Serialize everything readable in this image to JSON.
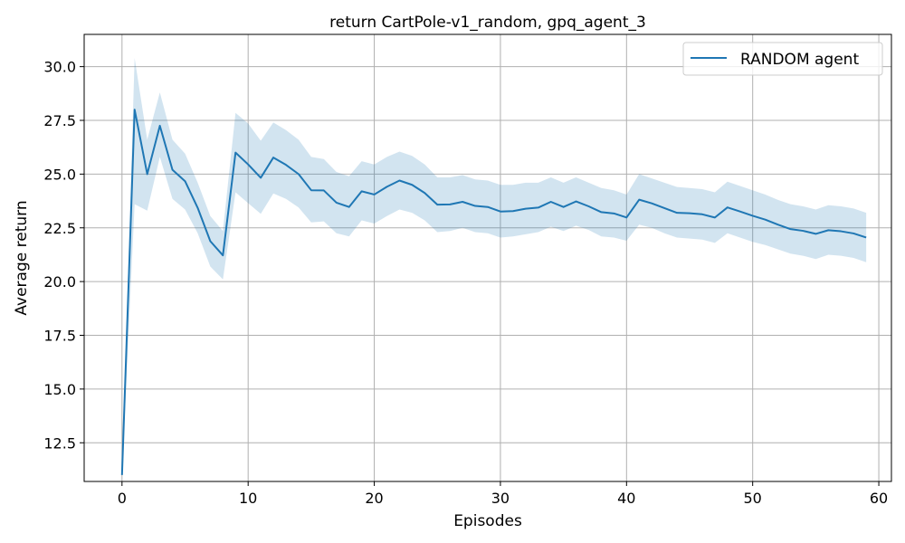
{
  "chart_data": {
    "type": "line",
    "title": "return CartPole-v1_random, gpq_agent_3",
    "xlabel": "Episodes",
    "ylabel": "Average return",
    "xlim": [
      -3,
      61
    ],
    "ylim": [
      10.7,
      31.5
    ],
    "x_ticks": [
      0,
      10,
      20,
      30,
      40,
      50,
      60
    ],
    "x_tick_labels": [
      "0",
      "10",
      "20",
      "30",
      "40",
      "50",
      "60"
    ],
    "y_ticks": [
      12.5,
      15.0,
      17.5,
      20.0,
      22.5,
      25.0,
      27.5,
      30.0
    ],
    "y_tick_labels": [
      "12.5",
      "15.0",
      "17.5",
      "20.0",
      "22.5",
      "25.0",
      "27.5",
      "30.0"
    ],
    "grid": true,
    "legend_position": "top-right",
    "series": [
      {
        "name": "RANDOM agent",
        "color": "#1f77b4",
        "band_color": "#1f77b4",
        "x": [
          0,
          1,
          2,
          3,
          4,
          5,
          6,
          7,
          8,
          9,
          10,
          11,
          12,
          13,
          14,
          15,
          16,
          17,
          18,
          19,
          20,
          21,
          22,
          23,
          24,
          25,
          26,
          27,
          28,
          29,
          30,
          31,
          32,
          33,
          34,
          35,
          36,
          37,
          38,
          39,
          40,
          41,
          42,
          43,
          44,
          45,
          46,
          47,
          48,
          49,
          50,
          51,
          52,
          53,
          54,
          55,
          56,
          57,
          58,
          59
        ],
        "values": [
          11.0,
          28.0,
          25.0,
          27.25,
          25.2,
          24.67,
          23.43,
          21.88,
          21.22,
          26.0,
          25.45,
          24.83,
          25.77,
          25.43,
          25.0,
          24.25,
          24.24,
          23.67,
          23.47,
          24.2,
          24.05,
          24.41,
          24.7,
          24.5,
          24.12,
          23.58,
          23.59,
          23.71,
          23.52,
          23.47,
          23.26,
          23.28,
          23.39,
          23.44,
          23.71,
          23.47,
          23.73,
          23.5,
          23.23,
          23.17,
          22.98,
          23.81,
          23.64,
          23.42,
          23.2,
          23.18,
          23.13,
          22.98,
          23.45,
          23.26,
          23.06,
          22.88,
          22.65,
          22.44,
          22.36,
          22.22,
          22.39,
          22.34,
          22.24,
          22.05
        ],
        "upper": [
          11.0,
          30.4,
          26.6,
          28.8,
          26.6,
          25.95,
          24.6,
          23.05,
          22.35,
          27.85,
          27.35,
          26.55,
          27.4,
          27.05,
          26.6,
          25.8,
          25.7,
          25.1,
          24.9,
          25.6,
          25.45,
          25.8,
          26.05,
          25.85,
          25.45,
          24.85,
          24.85,
          24.95,
          24.75,
          24.7,
          24.5,
          24.5,
          24.6,
          24.6,
          24.85,
          24.6,
          24.85,
          24.6,
          24.35,
          24.25,
          24.05,
          25.0,
          24.8,
          24.6,
          24.4,
          24.35,
          24.3,
          24.15,
          24.65,
          24.45,
          24.25,
          24.05,
          23.8,
          23.6,
          23.5,
          23.35,
          23.55,
          23.5,
          23.4,
          23.2
        ],
        "lower": [
          11.0,
          23.6,
          23.3,
          25.8,
          23.85,
          23.35,
          22.25,
          20.7,
          20.1,
          24.15,
          23.65,
          23.15,
          24.1,
          23.85,
          23.45,
          22.75,
          22.8,
          22.25,
          22.1,
          22.85,
          22.7,
          23.05,
          23.35,
          23.2,
          22.85,
          22.3,
          22.35,
          22.5,
          22.3,
          22.25,
          22.05,
          22.1,
          22.2,
          22.3,
          22.55,
          22.35,
          22.6,
          22.4,
          22.1,
          22.05,
          21.9,
          22.65,
          22.5,
          22.25,
          22.05,
          22.0,
          21.95,
          21.8,
          22.25,
          22.05,
          21.85,
          21.7,
          21.5,
          21.3,
          21.2,
          21.05,
          21.25,
          21.2,
          21.1,
          20.9
        ]
      }
    ]
  }
}
